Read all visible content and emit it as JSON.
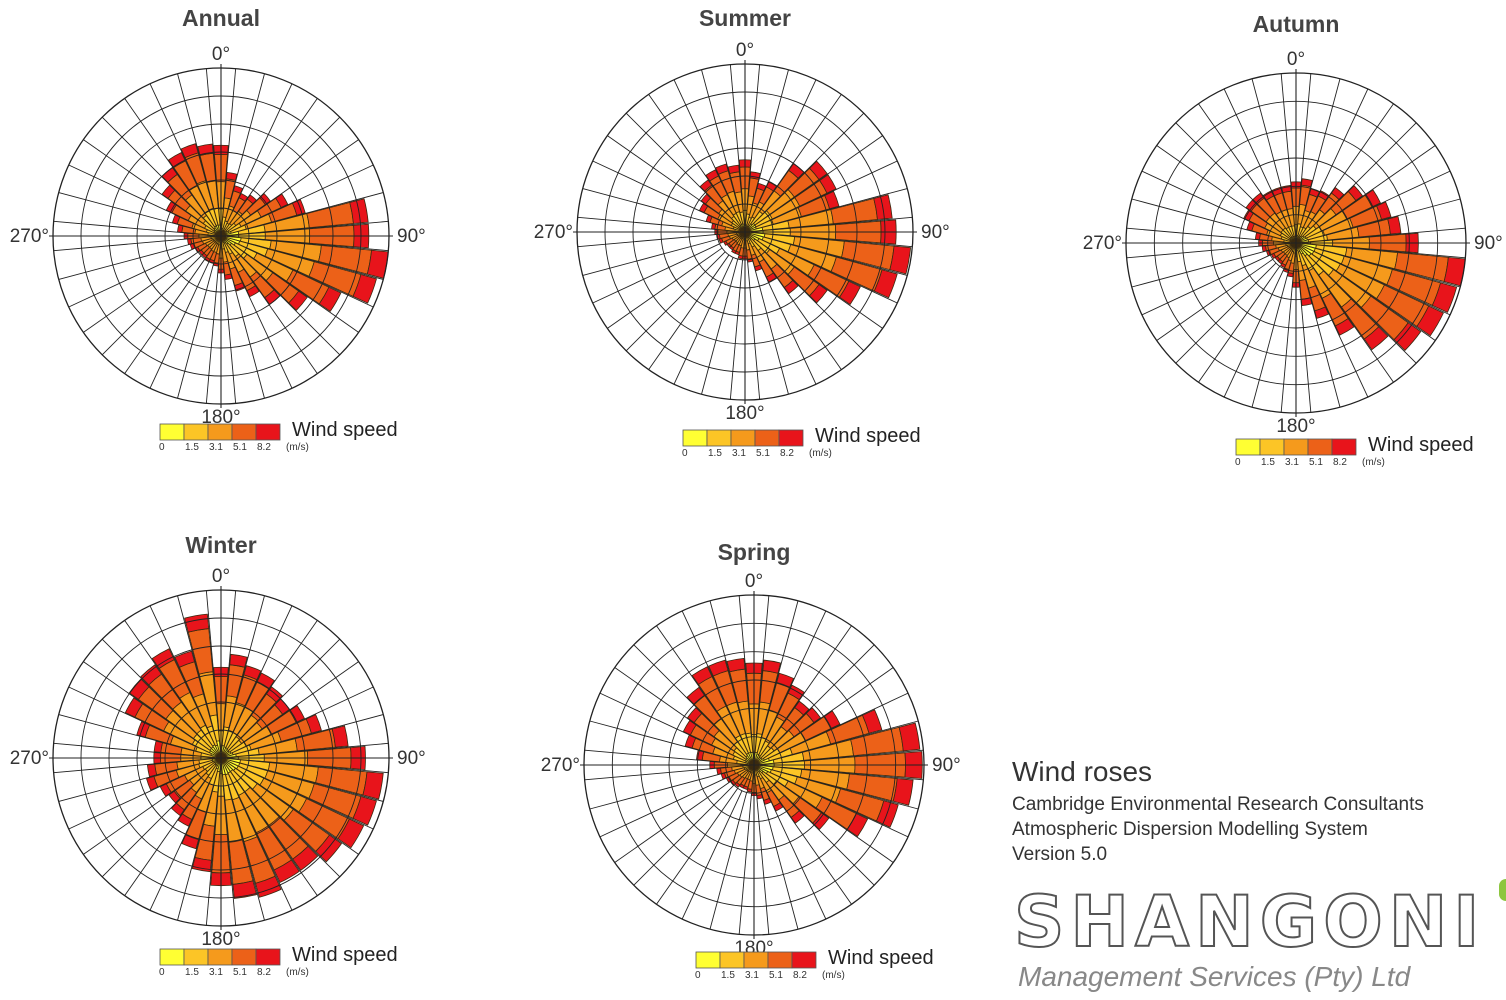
{
  "colors": {
    "bins": [
      "#ffff33",
      "#fcc526",
      "#f59a1c",
      "#ec6118",
      "#e8141b"
    ],
    "grid": "#222222"
  },
  "legend": {
    "title": "Wind speed",
    "ticks": [
      "0",
      "1.5",
      "3.1",
      "5.1",
      "8.2"
    ],
    "unit": "(m/s)"
  },
  "direction_labels": {
    "north": "0°",
    "east": "90°",
    "south": "180°",
    "west": "270°"
  },
  "footer": {
    "title": "Wind roses",
    "lines": [
      "Cambridge Environmental Research Consultants",
      "Atmospheric Dispersion Modelling System",
      "Version 5.0"
    ],
    "logo_text": "SHANGONI",
    "logo_sub": "Management Services (Pty) Ltd"
  },
  "chart_data": [
    {
      "type": "wind-rose",
      "title": "Annual",
      "directions_deg": [
        0,
        10,
        20,
        30,
        40,
        50,
        60,
        70,
        80,
        90,
        100,
        110,
        120,
        130,
        140,
        150,
        160,
        170,
        180,
        190,
        200,
        210,
        220,
        230,
        240,
        250,
        260,
        270,
        280,
        290,
        300,
        310,
        320,
        330,
        340,
        350
      ],
      "radial_rings": 6,
      "radii": [
        0.54,
        0.38,
        0.31,
        0.28,
        0.3,
        0.36,
        0.44,
        0.52,
        0.88,
        0.88,
        1.0,
        0.96,
        0.79,
        0.63,
        0.5,
        0.4,
        0.34,
        0.26,
        0.22,
        0.18,
        0.17,
        0.17,
        0.16,
        0.16,
        0.17,
        0.19,
        0.2,
        0.22,
        0.26,
        0.3,
        0.36,
        0.43,
        0.5,
        0.55,
        0.57,
        0.55
      ]
    },
    {
      "type": "wind-rose",
      "title": "Summer",
      "directions_deg": [
        0,
        10,
        20,
        30,
        40,
        50,
        60,
        70,
        80,
        90,
        100,
        110,
        120,
        130,
        140,
        150,
        160,
        170,
        180,
        190,
        200,
        210,
        220,
        230,
        240,
        250,
        260,
        270,
        280,
        290,
        300,
        310,
        320,
        330,
        340,
        350
      ],
      "radial_rings": 6,
      "radii": [
        0.43,
        0.36,
        0.3,
        0.33,
        0.5,
        0.6,
        0.6,
        0.58,
        0.88,
        0.9,
        0.99,
        0.94,
        0.76,
        0.6,
        0.45,
        0.33,
        0.24,
        0.18,
        0.16,
        0.16,
        0.14,
        0.14,
        0.13,
        0.13,
        0.14,
        0.16,
        0.17,
        0.18,
        0.2,
        0.24,
        0.3,
        0.32,
        0.38,
        0.41,
        0.42,
        0.4
      ]
    },
    {
      "type": "wind-rose",
      "title": "Autumn",
      "directions_deg": [
        0,
        10,
        20,
        30,
        40,
        50,
        60,
        70,
        80,
        90,
        100,
        110,
        120,
        130,
        140,
        150,
        160,
        170,
        180,
        190,
        200,
        210,
        220,
        230,
        240,
        250,
        260,
        270,
        280,
        290,
        300,
        310,
        320,
        330,
        340,
        350
      ],
      "radial_rings": 6,
      "radii": [
        0.36,
        0.38,
        0.33,
        0.34,
        0.4,
        0.48,
        0.55,
        0.58,
        0.62,
        0.72,
        1.0,
        0.98,
        0.96,
        0.9,
        0.77,
        0.6,
        0.46,
        0.37,
        0.26,
        0.2,
        0.18,
        0.16,
        0.15,
        0.15,
        0.16,
        0.18,
        0.2,
        0.22,
        0.24,
        0.3,
        0.34,
        0.36,
        0.36,
        0.34,
        0.34,
        0.34
      ]
    },
    {
      "type": "wind-rose",
      "title": "Winter",
      "directions_deg": [
        0,
        10,
        20,
        30,
        40,
        50,
        60,
        70,
        80,
        90,
        100,
        110,
        120,
        130,
        140,
        150,
        160,
        170,
        180,
        190,
        200,
        210,
        220,
        230,
        240,
        250,
        260,
        270,
        280,
        290,
        300,
        310,
        320,
        330,
        340,
        350
      ],
      "radial_rings": 6,
      "radii": [
        0.54,
        0.62,
        0.57,
        0.56,
        0.52,
        0.5,
        0.55,
        0.62,
        0.76,
        0.86,
        0.97,
        0.96,
        0.94,
        0.88,
        0.82,
        0.82,
        0.86,
        0.84,
        0.76,
        0.68,
        0.56,
        0.45,
        0.42,
        0.38,
        0.4,
        0.46,
        0.44,
        0.4,
        0.4,
        0.52,
        0.63,
        0.67,
        0.68,
        0.72,
        0.66,
        0.86
      ]
    },
    {
      "type": "wind-rose",
      "title": "Spring",
      "directions_deg": [
        0,
        10,
        20,
        30,
        40,
        50,
        60,
        70,
        80,
        90,
        100,
        110,
        120,
        130,
        140,
        150,
        160,
        170,
        180,
        190,
        200,
        210,
        220,
        230,
        240,
        250,
        260,
        270,
        280,
        290,
        300,
        310,
        320,
        330,
        340,
        350
      ],
      "radial_rings": 6,
      "radii": [
        0.6,
        0.62,
        0.56,
        0.52,
        0.46,
        0.48,
        0.56,
        0.78,
        0.98,
        0.99,
        0.94,
        0.88,
        0.74,
        0.54,
        0.42,
        0.3,
        0.24,
        0.2,
        0.18,
        0.16,
        0.15,
        0.15,
        0.16,
        0.17,
        0.18,
        0.2,
        0.22,
        0.26,
        0.34,
        0.42,
        0.46,
        0.48,
        0.56,
        0.64,
        0.64,
        0.63
      ]
    }
  ]
}
